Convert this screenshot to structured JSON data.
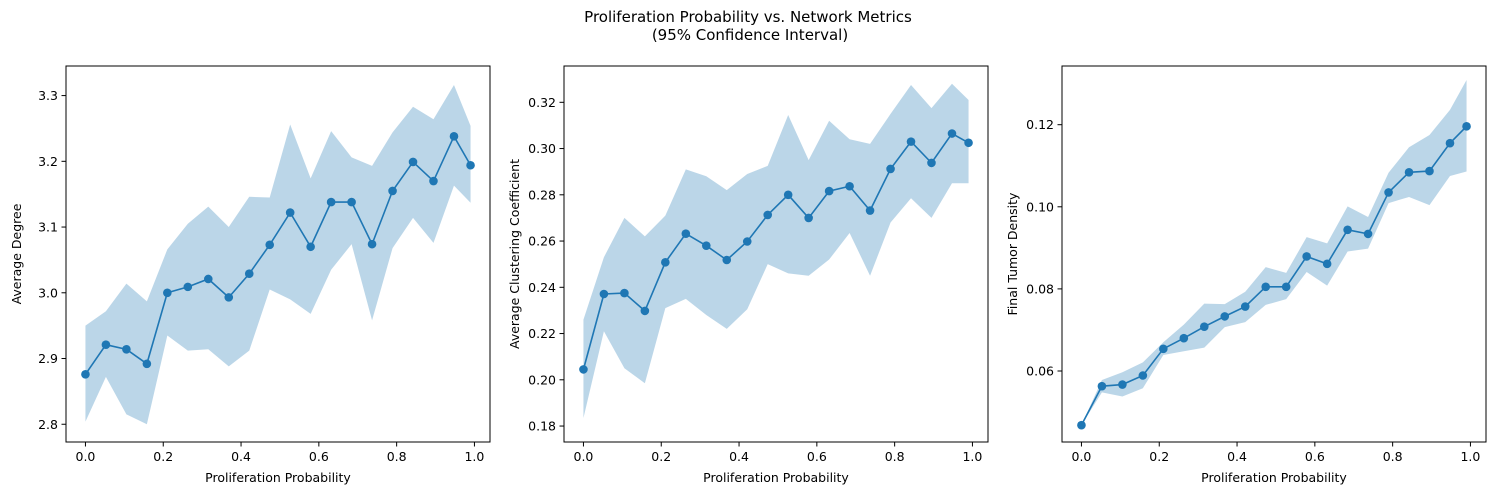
{
  "figure": {
    "suptitle_line1": "Proliferation Probability vs. Network Metrics",
    "suptitle_line2": "(95% Confidence Interval)"
  },
  "colors": {
    "line": "#1f77b4",
    "band": "#1f77b4",
    "band_opacity": 0.3
  },
  "chart_data": [
    {
      "type": "line",
      "xlabel": "Proliferation Probability",
      "ylabel": "Average Degree",
      "xlim": [
        -0.05,
        1.04
      ],
      "ylim": [
        2.773,
        3.345
      ],
      "xticks": [
        0.0,
        0.2,
        0.4,
        0.6,
        0.8,
        1.0
      ],
      "xtick_labels": [
        "0.0",
        "0.2",
        "0.4",
        "0.6",
        "0.8",
        "1.0"
      ],
      "yticks": [
        2.8,
        2.9,
        3.0,
        3.1,
        3.2,
        3.3
      ],
      "ytick_labels": [
        "2.8",
        "2.9",
        "3.0",
        "3.1",
        "3.2",
        "3.3"
      ],
      "grid": false,
      "x": [
        0.0,
        0.0526,
        0.1053,
        0.1579,
        0.2105,
        0.2632,
        0.3158,
        0.3684,
        0.4211,
        0.4737,
        0.5263,
        0.5789,
        0.6316,
        0.6842,
        0.7368,
        0.7895,
        0.8421,
        0.8947,
        0.9474,
        0.99
      ],
      "y": [
        2.876,
        2.921,
        2.914,
        2.892,
        3.0,
        3.009,
        3.021,
        2.993,
        3.029,
        3.073,
        3.122,
        3.07,
        3.138,
        3.138,
        3.074,
        3.155,
        3.199,
        3.17,
        3.238,
        3.194
      ],
      "ci_lower": [
        2.804,
        2.872,
        2.815,
        2.8,
        2.935,
        2.912,
        2.914,
        2.888,
        2.912,
        3.005,
        2.99,
        2.968,
        3.035,
        3.074,
        2.958,
        3.068,
        3.114,
        3.076,
        3.163,
        3.137
      ],
      "ci_upper": [
        2.95,
        2.972,
        3.014,
        2.987,
        3.066,
        3.105,
        3.131,
        3.1,
        3.146,
        3.145,
        3.256,
        3.174,
        3.246,
        3.206,
        3.193,
        3.244,
        3.283,
        3.264,
        3.316,
        3.254
      ]
    },
    {
      "type": "line",
      "xlabel": "Proliferation Probability",
      "ylabel": "Average Clustering Coefficient",
      "xlim": [
        -0.05,
        1.04
      ],
      "ylim": [
        0.1731,
        0.3357
      ],
      "xticks": [
        0.0,
        0.2,
        0.4,
        0.6,
        0.8,
        1.0
      ],
      "xtick_labels": [
        "0.0",
        "0.2",
        "0.4",
        "0.6",
        "0.8",
        "1.0"
      ],
      "yticks": [
        0.18,
        0.2,
        0.22,
        0.24,
        0.26,
        0.28,
        0.3,
        0.32
      ],
      "ytick_labels": [
        "0.18",
        "0.20",
        "0.22",
        "0.24",
        "0.26",
        "0.28",
        "0.30",
        "0.32"
      ],
      "grid": false,
      "x": [
        0.0,
        0.0526,
        0.1053,
        0.1579,
        0.2105,
        0.2632,
        0.3158,
        0.3684,
        0.4211,
        0.4737,
        0.5263,
        0.5789,
        0.6316,
        0.6842,
        0.7368,
        0.7895,
        0.8421,
        0.8947,
        0.9474,
        0.99
      ],
      "y": [
        0.2045,
        0.2371,
        0.2375,
        0.2298,
        0.2508,
        0.2632,
        0.258,
        0.2518,
        0.2598,
        0.2713,
        0.28,
        0.27,
        0.2816,
        0.2837,
        0.2732,
        0.2912,
        0.303,
        0.2938,
        0.3065,
        0.3025
      ],
      "ci_lower": [
        0.1835,
        0.221,
        0.205,
        0.1985,
        0.231,
        0.235,
        0.228,
        0.222,
        0.2305,
        0.25,
        0.246,
        0.245,
        0.252,
        0.2635,
        0.245,
        0.268,
        0.2785,
        0.27,
        0.285,
        0.285
      ],
      "ci_upper": [
        0.226,
        0.253,
        0.27,
        0.262,
        0.271,
        0.291,
        0.288,
        0.282,
        0.289,
        0.2925,
        0.3145,
        0.295,
        0.312,
        0.304,
        0.302,
        0.315,
        0.3275,
        0.3175,
        0.328,
        0.321
      ]
    },
    {
      "type": "line",
      "xlabel": "Proliferation Probability",
      "ylabel": "Final Tumor Density",
      "xlim": [
        -0.05,
        1.04
      ],
      "ylim": [
        0.0427,
        0.1343
      ],
      "xticks": [
        0.0,
        0.2,
        0.4,
        0.6,
        0.8,
        1.0
      ],
      "xtick_labels": [
        "0.0",
        "0.2",
        "0.4",
        "0.6",
        "0.8",
        "1.0"
      ],
      "yticks": [
        0.06,
        0.08,
        0.1,
        0.12
      ],
      "ytick_labels": [
        "0.06",
        "0.08",
        "0.10",
        "0.12"
      ],
      "grid": false,
      "x": [
        0.0,
        0.0526,
        0.1053,
        0.1579,
        0.2105,
        0.2632,
        0.3158,
        0.3684,
        0.4211,
        0.4737,
        0.5263,
        0.5789,
        0.6316,
        0.6842,
        0.7368,
        0.7895,
        0.8421,
        0.8947,
        0.9474,
        0.99
      ],
      "y": [
        0.0468,
        0.0563,
        0.0567,
        0.0589,
        0.0654,
        0.068,
        0.0708,
        0.0733,
        0.0757,
        0.0805,
        0.0805,
        0.0879,
        0.0861,
        0.0944,
        0.0934,
        0.1035,
        0.1084,
        0.1087,
        0.1155,
        0.1196
      ],
      "ci_lower": [
        0.0468,
        0.0548,
        0.0538,
        0.0558,
        0.0639,
        0.0648,
        0.0657,
        0.0707,
        0.0719,
        0.0761,
        0.0775,
        0.0841,
        0.0808,
        0.0891,
        0.0898,
        0.1009,
        0.1024,
        0.1004,
        0.1075,
        0.1086
      ],
      "ci_upper": [
        0.0468,
        0.0578,
        0.0597,
        0.0621,
        0.067,
        0.0713,
        0.0764,
        0.0763,
        0.0793,
        0.0853,
        0.0839,
        0.0926,
        0.0911,
        0.1001,
        0.0975,
        0.1083,
        0.1145,
        0.1175,
        0.1236,
        0.1309
      ]
    }
  ]
}
